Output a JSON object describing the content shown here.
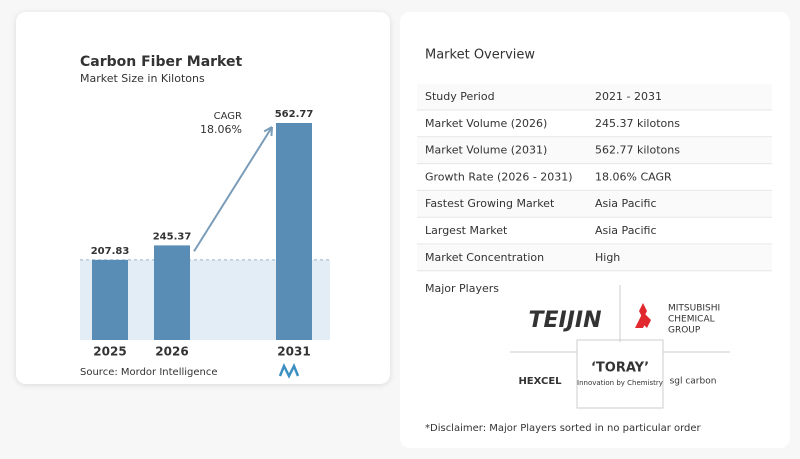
{
  "chart_data": {
    "type": "bar",
    "title": "Carbon Fiber Market",
    "subtitle": "Market Size in Kilotons",
    "categories": [
      "2025",
      "2026",
      "2031"
    ],
    "values": [
      207.83,
      245.37,
      562.77
    ],
    "color": "#5a8db5",
    "annotation": {
      "label": "CAGR",
      "value": "18.06%"
    },
    "source": "Source: Mordor Intelligence"
  },
  "overview": {
    "title": "Market Overview",
    "rows": [
      [
        "Study Period",
        "2021 - 2031"
      ],
      [
        "Market Volume (2026)",
        "245.37 kilotons"
      ],
      [
        "Market Volume (2031)",
        "562.77 kilotons"
      ],
      [
        "Growth Rate (2026 - 2031)",
        "18.06% CAGR"
      ],
      [
        "Fastest Growing Market",
        "Asia Pacific"
      ],
      [
        "Largest Market",
        "Asia Pacific"
      ],
      [
        "Market Concentration",
        "High"
      ]
    ],
    "players_title": "Major Players",
    "players": {
      "teijin": "TEIJIN",
      "mitsubishi": [
        "MITSUBISHI",
        "CHEMICAL",
        "GROUP"
      ],
      "toray": "‘TORAY’",
      "toray_tagline": "Innovation by Chemistry",
      "hexcel": "HEXCEL",
      "sgl": "sgl carbon"
    },
    "disclaimer": "*Disclaimer: Major Players sorted in no particular order"
  }
}
